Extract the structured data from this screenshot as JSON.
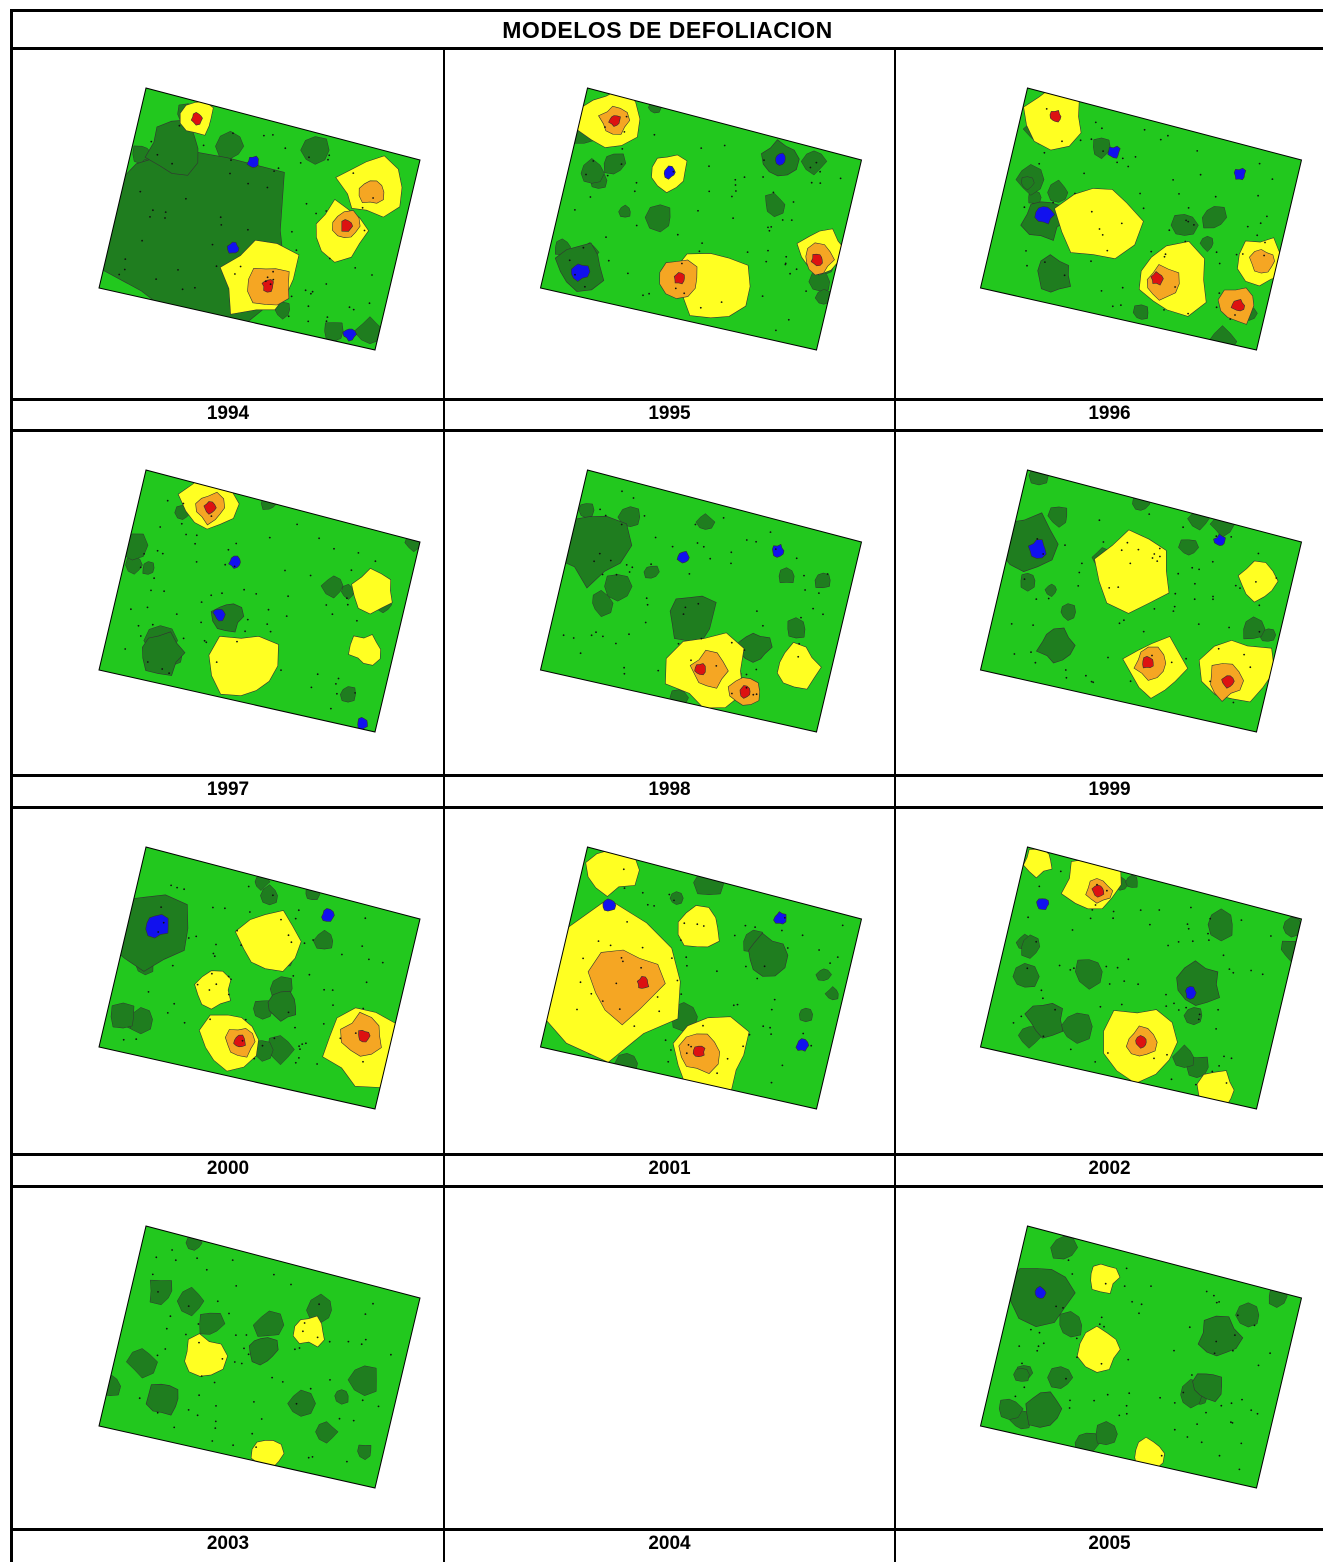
{
  "title": "MODELOS DE DEFOLIACION",
  "colors": {
    "dark_green": "#1f7d1f",
    "green": "#22c81e",
    "light_green": "#5ee05a",
    "yellow": "#ffff22",
    "orange": "#f5a623",
    "brown": "#c0714a",
    "red": "#dd1111",
    "blue": "#1111ee"
  },
  "panels": [
    {
      "year": "1994",
      "has_map": true,
      "variant": "a"
    },
    {
      "year": "1995",
      "has_map": true,
      "variant": "b"
    },
    {
      "year": "1996",
      "has_map": true,
      "variant": "c"
    },
    {
      "year": "1997",
      "has_map": true,
      "variant": "d"
    },
    {
      "year": "1998",
      "has_map": true,
      "variant": "e"
    },
    {
      "year": "1999",
      "has_map": true,
      "variant": "f"
    },
    {
      "year": "2000",
      "has_map": true,
      "variant": "g"
    },
    {
      "year": "2001",
      "has_map": true,
      "variant": "h"
    },
    {
      "year": "2002",
      "has_map": true,
      "variant": "i"
    },
    {
      "year": "2003",
      "has_map": true,
      "variant": "j"
    },
    {
      "year": "2004",
      "has_map": false,
      "variant": "none"
    },
    {
      "year": "2005",
      "has_map": true,
      "variant": "k"
    }
  ]
}
